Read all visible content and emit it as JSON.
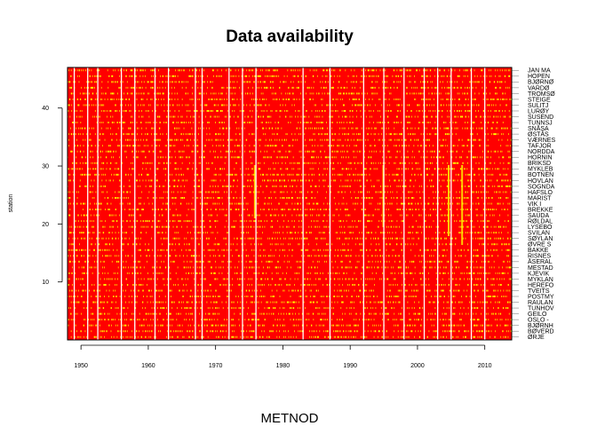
{
  "chart_data": {
    "type": "heatmap",
    "title": "Data availability",
    "xlabel": "METNOD",
    "ylabel": "station",
    "xlim": [
      1948,
      2014
    ],
    "ylim": [
      0,
      47
    ],
    "x_ticks": [
      1950,
      1960,
      1970,
      1980,
      1990,
      2000,
      2010
    ],
    "y_ticks": [
      10,
      20,
      30,
      40
    ],
    "grid": false,
    "colors": {
      "missing": "#ff0000",
      "available": "#ffff00",
      "gap": "#ffffff",
      "axis": "#000000"
    },
    "stations": [
      "JAN MA",
      "HOPEN",
      "BJØRNØ",
      "VARDØ",
      "TROMSØ",
      "STEIGE",
      "SULITJ",
      "LURØY",
      "SUSEND",
      "TUNNSJ",
      "SNÅSA",
      "ØSTÅS",
      "VÆRNES",
      "TAFJOR",
      "NORDDA",
      "HORNIN",
      "BRIKSD",
      "MYKLEB",
      "BOTNEN",
      "HOVLAN",
      "SOGNDA",
      "HAFSLO",
      "MARIST",
      "VIK I",
      "BREKKE",
      "SAUDA",
      "RØLDAL",
      "LYSEBO",
      "SVILAN",
      "SØYLAN",
      "ØVRE S",
      "BAKKE",
      "RISNES",
      "ÅSERAL",
      "MESTAD",
      "KJEVIK",
      "MYKLAN",
      "HEREFO",
      "TVEITS",
      "POSTMY",
      "RAULAN",
      "TUNHOV",
      "GEILO",
      "OSLO -",
      "BJØRNH",
      "BØVERD",
      "ØRJE"
    ],
    "gap_years": [
      1949,
      1951,
      1952.5,
      1956,
      1958,
      1961,
      1963,
      1967,
      1968,
      1972,
      1974,
      1976,
      1983,
      1987,
      1992,
      1995,
      1998,
      2001,
      2003,
      2005,
      2008,
      2010
    ],
    "availability_note": "Mostly sparse yellow (available) observations scattered over a red (missing) background for all 47 stations."
  }
}
